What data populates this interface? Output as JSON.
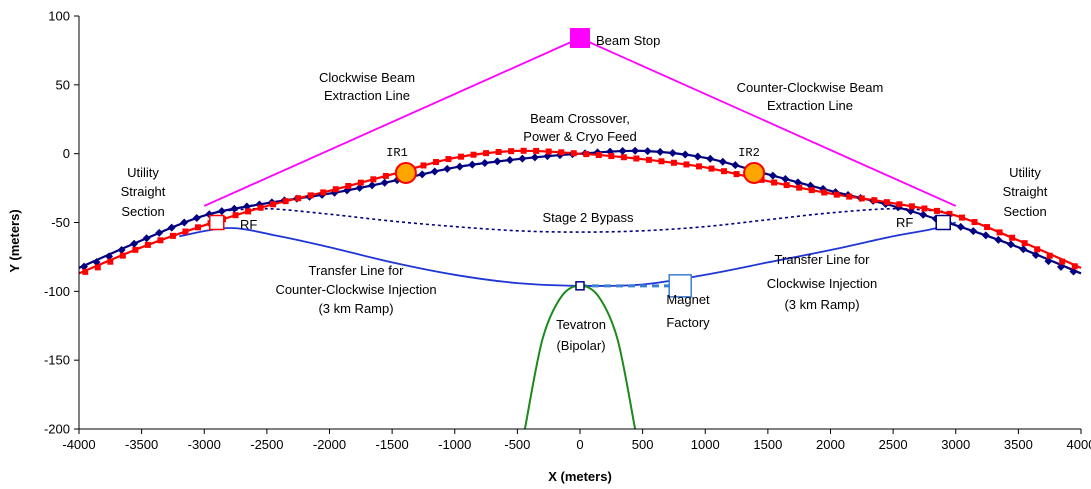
{
  "chart_data": {
    "type": "line",
    "xlabel": "X (meters)",
    "ylabel": "Y (meters)",
    "xlim": [
      -4000,
      4000
    ],
    "ylim": [
      -200,
      100
    ],
    "x_ticks": [
      -4000,
      -3500,
      -3000,
      -2500,
      -2000,
      -1500,
      -1000,
      -500,
      0,
      500,
      1000,
      1500,
      2000,
      2500,
      3000,
      3500,
      4000
    ],
    "y_ticks": [
      -200,
      -150,
      -100,
      -50,
      0,
      50,
      100
    ],
    "grid": false,
    "colors": {
      "ring_blue": "#000080",
      "ring_red": "#ff0000",
      "extraction": "#ff00ff",
      "transfer": "#1f35d6",
      "tevatron": "#1a8a1a",
      "ir_fill": "#ffa500",
      "magnet_factory": "#3a7fd0"
    },
    "series": [
      {
        "key": "ring_blue",
        "style": "line+diamond",
        "x": [
          -4000,
          -3500,
          -3000,
          -2500,
          -2000,
          -1500,
          -1000,
          -500,
          0,
          500,
          1000,
          1500,
          2000,
          2500,
          3000,
          3500,
          4000
        ],
        "y": [
          -83,
          -63,
          -45,
          -36,
          -29,
          -20,
          -10,
          -4,
          0,
          2,
          -3,
          -15,
          -27,
          -38,
          -52,
          -68,
          -87
        ]
      },
      {
        "key": "ring_red",
        "style": "line+square",
        "x": [
          -4000,
          -3500,
          -3000,
          -2500,
          -2000,
          -1500,
          -1000,
          -500,
          0,
          500,
          1000,
          1500,
          2000,
          2500,
          3000,
          3500,
          4000
        ],
        "y": [
          -87,
          -68,
          -52,
          -38,
          -27,
          -15,
          -3,
          2,
          0,
          -4,
          -10,
          -20,
          -29,
          -36,
          -45,
          -63,
          -83
        ]
      },
      {
        "key": "extraction",
        "style": "line",
        "x": [
          -3000,
          0,
          3000
        ],
        "y": [
          -38,
          84,
          -38
        ]
      },
      {
        "key": "transfer",
        "style": "line",
        "x": [
          -3200,
          -2800,
          -2400,
          -2000,
          -1500,
          -1000,
          -500,
          0,
          500,
          1000,
          1500,
          2000,
          2500,
          2800,
          3000
        ],
        "y": [
          -60,
          -54,
          -60,
          -68,
          -79,
          -88,
          -94,
          -96,
          -95,
          -88,
          -79,
          -70,
          -60,
          -55,
          -50
        ]
      },
      {
        "key": "bypass",
        "style": "dotted",
        "x": [
          -2900,
          -2500,
          -2000,
          -1500,
          -1000,
          -500,
          0,
          500,
          1000,
          1500,
          2000,
          2500,
          2900
        ],
        "y": [
          -42,
          -40,
          -44,
          -49,
          -53,
          -56,
          -57,
          -56,
          -53,
          -48,
          -43,
          -40,
          -42
        ]
      },
      {
        "key": "tevatron",
        "style": "line",
        "x": [
          -440,
          -300,
          -150,
          0,
          150,
          300,
          440
        ],
        "y": [
          -200,
          -135,
          -104,
          -96,
          -104,
          -135,
          -200
        ]
      },
      {
        "key": "magnet_feed",
        "style": "dashed",
        "x": [
          0,
          800
        ],
        "y": [
          -96,
          -96
        ]
      }
    ],
    "markers": [
      {
        "name": "beam-stop",
        "x": 0,
        "y": 84,
        "label": "Beam Stop"
      },
      {
        "name": "ir1",
        "x": -1390,
        "y": -14,
        "label": "IR1"
      },
      {
        "name": "ir2",
        "x": 1390,
        "y": -14,
        "label": "IR2"
      },
      {
        "name": "rf-left",
        "x": -2900,
        "y": -50,
        "label": "RF"
      },
      {
        "name": "rf-right",
        "x": 2900,
        "y": -50,
        "label": "RF"
      },
      {
        "name": "tevatron-node",
        "x": 0,
        "y": -96
      },
      {
        "name": "magnet-factory-box",
        "x": 800,
        "y": -96
      }
    ],
    "annotations": {
      "clockwise_extraction": [
        "Clockwise Beam",
        "Extraction Line"
      ],
      "counter_clockwise_extraction": [
        "Counter-Clockwise Beam",
        "Extraction Line"
      ],
      "crossover": [
        "Beam Crossover,",
        "Power & Cryo Feed"
      ],
      "utility_left": [
        "Utility",
        "Straight",
        "Section"
      ],
      "utility_right": [
        "Utility",
        "Straight",
        "Section"
      ],
      "bypass": "Stage 2 Bypass",
      "transfer_ccw": [
        "Transfer Line for",
        "Counter-Clockwise Injection",
        "(3 km Ramp)"
      ],
      "transfer_cw": [
        "Transfer Line for",
        "Clockwise Injection",
        "(3 km Ramp)"
      ],
      "tevatron": [
        "Tevatron",
        "(Bipolar)"
      ],
      "magnet_factory": [
        "Magnet",
        "Factory"
      ]
    }
  }
}
